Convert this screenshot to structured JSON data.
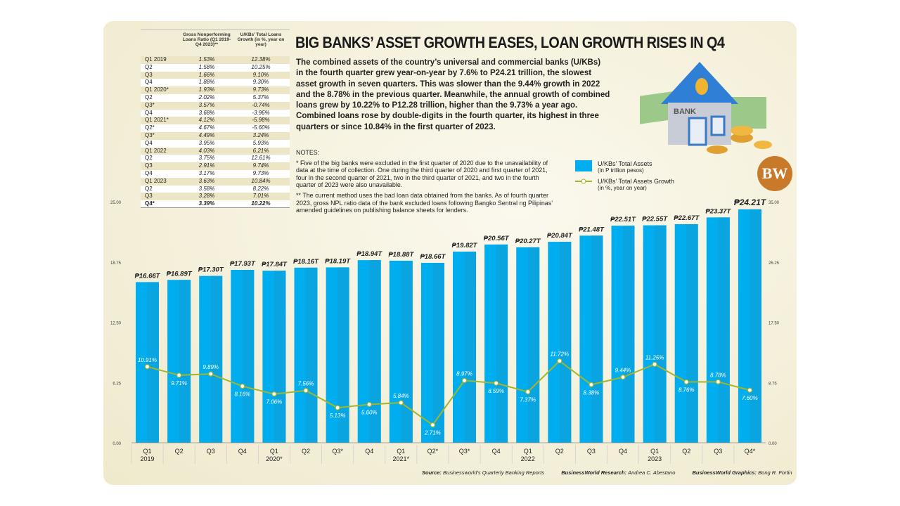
{
  "title": "BIG BANKS’ ASSET GROWTH EASES, LOAN GROWTH RISES IN Q4",
  "intro": "The combined assets of the country’s universal and commercial banks (U/KBs) in the fourth quarter grew year-on-year by 7.6% to P24.21 trillion, the slowest asset growth in seven quarters. This was slower than the 9.44% growth in 2022 and the 8.78% in the previous quarter. Meanwhile, the annual growth of combined loans grew by 10.22% to P12.28 trillion, higher than the 9.73% a year ago. Combined loans rose by double-digits in the fourth quarter, its highest in three quarters or since 10.84% in the first quarter of 2023.",
  "notes": {
    "heading": "NOTES:",
    "n1": "* Five of the big banks were excluded in the first quarter of 2020 due to the unavailability of data at the time of collection. One during the third quarter of 2020 and first quarter of 2021, four in the second quarter of 2021, two in the third quarter of 2021, and two in the fourth quarter of 2023 were also unavailable.",
    "n2": "** The current method uses the bad loan data obtained from the banks. As of fourth quarter 2023, gross NPL ratio data of the bank excluded loans following Bangko Sentral ng Pilipinas’ amended guidelines on publishing balance sheets for lenders."
  },
  "table": {
    "headers": [
      "",
      "Gross Nonperforming Loans Ratio (Q1 2019-Q4 2023)**",
      "U/KBs’ Total Loans Growth (in %, year on year)"
    ],
    "rows": [
      [
        "Q1 2019",
        "1.53%",
        "12.38%"
      ],
      [
        "Q2",
        "1.58%",
        "10.25%"
      ],
      [
        "Q3",
        "1.66%",
        "9.10%"
      ],
      [
        "Q4",
        "1.88%",
        "9.30%"
      ],
      [
        "Q1 2020*",
        "1.93%",
        "9.73%"
      ],
      [
        "Q2",
        "2.02%",
        "5.37%"
      ],
      [
        "Q3*",
        "3.57%",
        "-0.74%"
      ],
      [
        "Q4",
        "3.68%",
        "-3.96%"
      ],
      [
        "Q1 2021*",
        "4.12%",
        "-5.98%"
      ],
      [
        "Q2*",
        "4.67%",
        "-5.60%"
      ],
      [
        "Q3*",
        "4.49%",
        "3.24%"
      ],
      [
        "Q4",
        "3.95%",
        "5.93%"
      ],
      [
        "Q1 2022",
        "4.03%",
        "6.21%"
      ],
      [
        "Q2",
        "3.75%",
        "12.61%"
      ],
      [
        "Q3",
        "2.91%",
        "9.74%"
      ],
      [
        "Q4",
        "3.17%",
        "9.73%"
      ],
      [
        "Q1 2023",
        "3.63%",
        "10.84%"
      ],
      [
        "Q2",
        "3.58%",
        "8.22%"
      ],
      [
        "Q3",
        "3.28%",
        "7.01%"
      ],
      [
        "Q4*",
        "3.39%",
        "10.22%"
      ]
    ]
  },
  "legend": {
    "assets": "U/KBs’ Total Assets",
    "assets_sub": "(in P trillion pesos)",
    "growth": "U/KBs’ Total Assets Growth",
    "growth_sub": "(in %, year on year)"
  },
  "logo": "BW",
  "bank_sign": "BANK",
  "footer": {
    "source_label": "Source:",
    "source": "Businessworld’s Quarterly Banking Reports",
    "research_label": "BusinessWorld Research:",
    "research": "Andrea C. Abestano",
    "graphics_label": "BusinessWorld Graphics:",
    "graphics": "Bong R. Fortin"
  },
  "chart_data": {
    "type": "bar+line",
    "categories": [
      "Q1 2019",
      "Q2",
      "Q3",
      "Q4",
      "Q1 2020*",
      "Q2",
      "Q3*",
      "Q4",
      "Q1 2021*",
      "Q2*",
      "Q3*",
      "Q4",
      "Q1 2022",
      "Q2",
      "Q3",
      "Q4",
      "Q1 2023",
      "Q2",
      "Q3",
      "Q4*"
    ],
    "cat_line1": [
      "Q1",
      "Q2",
      "Q3",
      "Q4",
      "Q1",
      "Q2",
      "Q3*",
      "Q4",
      "Q1",
      "Q2*",
      "Q3*",
      "Q4",
      "Q1",
      "Q2",
      "Q3",
      "Q4",
      "Q1",
      "Q2",
      "Q3",
      "Q4*"
    ],
    "cat_line2": [
      "2019",
      "",
      "",
      "",
      "2020*",
      "",
      "",
      "",
      "2021*",
      "",
      "",
      "",
      "2022",
      "",
      "",
      "",
      "2023",
      "",
      "",
      ""
    ],
    "series": [
      {
        "name": "U/KBs’ Total Assets",
        "type": "bar",
        "values": [
          16.66,
          16.89,
          17.3,
          17.93,
          17.84,
          18.16,
          18.19,
          18.94,
          18.88,
          18.66,
          19.82,
          20.56,
          20.27,
          20.84,
          21.48,
          22.51,
          22.55,
          22.67,
          23.37,
          24.21
        ],
        "labels": [
          "₱16.66T",
          "₱16.89T",
          "₱17.30T",
          "₱17.93T",
          "₱17.84T",
          "₱18.16T",
          "₱18.19T",
          "₱18.94T",
          "₱18.88T",
          "₱18.66T",
          "₱19.82T",
          "₱20.56T",
          "₱20.27T",
          "₱20.84T",
          "₱21.48T",
          "₱22.51T",
          "₱22.55T",
          "₱22.67T",
          "₱23.37T",
          "₱24.21T"
        ]
      },
      {
        "name": "U/KBs’ Total Assets Growth",
        "type": "line",
        "values": [
          10.91,
          9.71,
          9.89,
          8.16,
          7.06,
          7.56,
          5.13,
          5.6,
          5.84,
          2.71,
          8.97,
          8.59,
          7.37,
          11.72,
          8.38,
          9.44,
          11.25,
          8.76,
          8.78,
          7.6
        ],
        "labels": [
          "10.91%",
          "9.71%",
          "9.89%",
          "8.16%",
          "7.06%",
          "7.56%",
          "5.13%",
          "5.60%",
          "5.84%",
          "2.71%",
          "8.97%",
          "8.59%",
          "7.37%",
          "11.72%",
          "8.38%",
          "9.44%",
          "11.25%",
          "8.76%",
          "8.78%",
          "7.60%"
        ]
      }
    ],
    "left_ticks": [
      "0.00",
      "6.25",
      "12.50",
      "18.75",
      "25.00"
    ],
    "right_ticks": [
      "0.00",
      "8.75",
      "17.50",
      "26.25",
      "35.00"
    ],
    "ylim": [
      0,
      25
    ],
    "colors": {
      "bar": "#00aeef",
      "line": "#a3b52a"
    }
  }
}
